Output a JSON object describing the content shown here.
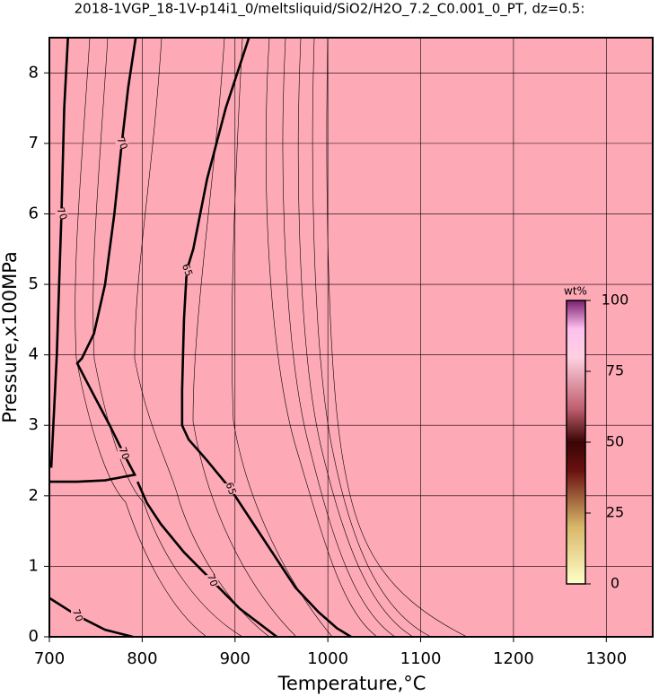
{
  "chart_data": {
    "type": "contour",
    "title": "2018-1VGP_18-1V-p14i1_0/meltsliquid/SiO2/H2O_7.2_C0.001_0_PT, dz=0.5:",
    "x_label": "Temperature,°C",
    "y_label": "Pressure,x100MPa",
    "xlim": [
      700,
      1350
    ],
    "ylim": [
      0,
      8.5
    ],
    "xticks": [
      700,
      800,
      900,
      1000,
      1100,
      1200,
      1300
    ],
    "yticks": [
      0,
      1,
      2,
      3,
      4,
      5,
      6,
      7,
      8
    ],
    "grid": true,
    "background": "#fea9b6",
    "contours": [
      {
        "level": 70,
        "x": [
          793,
          785,
          778,
          770,
          760,
          748,
          735,
          730,
          745,
          765,
          780,
          792,
          760,
          730,
          700
        ],
        "y": [
          8.5,
          7.8,
          7,
          6,
          5,
          4.3,
          3.95,
          3.88,
          3.5,
          3.0,
          2.6,
          2.3,
          2.22,
          2.2,
          2.2
        ]
      },
      {
        "level": 65,
        "x": [
          915,
          890,
          870,
          855,
          848,
          845,
          843,
          843,
          850,
          870,
          895,
          920,
          945,
          965,
          990,
          1010,
          1025
        ],
        "y": [
          8.5,
          7.5,
          6.5,
          5.5,
          5.2,
          4.5,
          3.5,
          3.0,
          2.8,
          2.5,
          2.1,
          1.6,
          1.1,
          0.7,
          0.35,
          0.12,
          0
        ]
      },
      {
        "level": 70,
        "x": [
          795,
          805,
          820,
          845,
          875,
          905,
          935,
          945
        ],
        "y": [
          2.2,
          1.9,
          1.6,
          1.2,
          0.8,
          0.4,
          0.1,
          0
        ]
      },
      {
        "level": 70,
        "x": [
          702,
          708,
          713,
          716,
          720
        ],
        "y": [
          2.4,
          4,
          6,
          7.5,
          8.5
        ]
      },
      {
        "level": 70,
        "x": [
          700,
          730,
          760,
          790
        ],
        "y": [
          0.55,
          0.3,
          0.1,
          0
        ]
      }
    ],
    "colorbar": {
      "title": "wt%",
      "lim": [
        0,
        100
      ],
      "ticks": [
        0,
        25,
        50,
        75,
        100
      ]
    }
  }
}
